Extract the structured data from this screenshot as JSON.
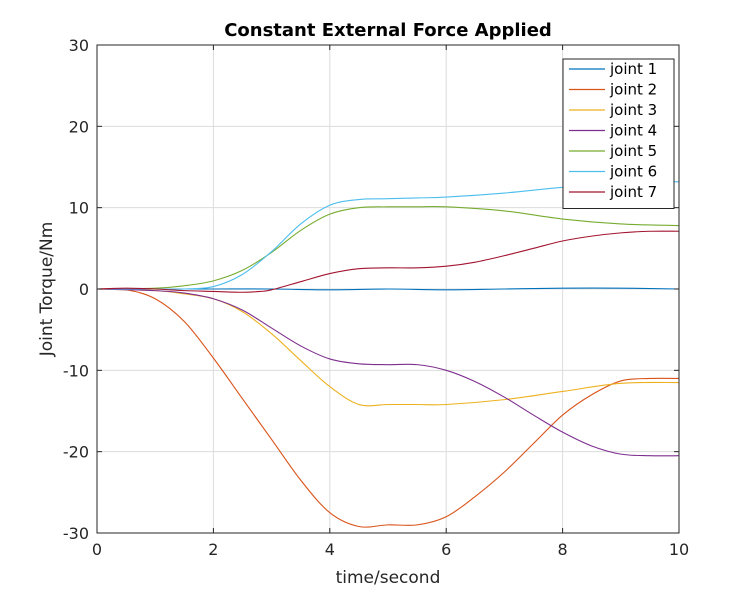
{
  "chart_data": {
    "type": "line",
    "title": "Constant External Force Applied",
    "xlabel": "time/second",
    "ylabel": "Joint Torque/Nm",
    "xlim": [
      0,
      10
    ],
    "ylim": [
      -30,
      30
    ],
    "xticks": [
      0,
      2,
      4,
      6,
      8,
      10
    ],
    "yticks": [
      -30,
      -20,
      -10,
      0,
      10,
      20,
      30
    ],
    "xtick_labels": [
      "0",
      "2",
      "4",
      "6",
      "8",
      "10"
    ],
    "ytick_labels": [
      "-30",
      "-20",
      "-10",
      "0",
      "10",
      "20",
      "30"
    ],
    "grid": true,
    "legend_position": "top-right",
    "series": [
      {
        "name": "joint 1",
        "color": "#0072bd",
        "x": [
          0,
          1,
          2,
          3,
          4,
          5,
          6,
          7,
          8,
          9,
          10
        ],
        "y": [
          0,
          0,
          0,
          0,
          -0.1,
          0,
          -0.1,
          0,
          0.1,
          0.1,
          0
        ]
      },
      {
        "name": "joint 2",
        "color": "#d95319",
        "x": [
          0,
          0.5,
          1,
          1.5,
          2,
          2.5,
          3,
          3.5,
          4,
          4.5,
          5,
          5.5,
          6,
          6.5,
          7,
          7.5,
          8,
          8.5,
          9,
          9.5,
          10
        ],
        "y": [
          0,
          -0.1,
          -1.2,
          -4.0,
          -8.5,
          -13.5,
          -18.5,
          -23.5,
          -27.5,
          -29.2,
          -29.0,
          -29.0,
          -28.0,
          -25.5,
          -22.5,
          -19.0,
          -15.5,
          -13.0,
          -11.3,
          -11.0,
          -11.0
        ]
      },
      {
        "name": "joint 3",
        "color": "#edb120",
        "x": [
          0,
          1,
          1.5,
          2,
          2.5,
          3,
          3.5,
          4,
          4.5,
          5,
          5.5,
          6,
          7,
          8,
          9,
          10
        ],
        "y": [
          0,
          -0.2,
          -0.6,
          -1.2,
          -2.8,
          -5.5,
          -8.8,
          -12.0,
          -14.2,
          -14.2,
          -14.2,
          -14.2,
          -13.6,
          -12.6,
          -11.6,
          -11.5
        ]
      },
      {
        "name": "joint 4",
        "color": "#7e2f8e",
        "x": [
          0,
          1,
          1.5,
          2,
          2.5,
          3,
          3.5,
          4,
          4.5,
          5,
          5.5,
          6,
          6.5,
          7,
          7.5,
          8,
          8.5,
          9,
          9.5,
          10
        ],
        "y": [
          0,
          -0.2,
          -0.5,
          -1.2,
          -2.6,
          -4.8,
          -7.0,
          -8.6,
          -9.2,
          -9.3,
          -9.3,
          -10.0,
          -11.4,
          -13.3,
          -15.5,
          -17.6,
          -19.3,
          -20.3,
          -20.5,
          -20.5
        ]
      },
      {
        "name": "joint 5",
        "color": "#77ac30",
        "x": [
          0,
          1,
          1.5,
          2,
          2.5,
          3,
          3.5,
          4,
          4.5,
          5,
          5.5,
          6,
          7,
          8,
          9,
          10
        ],
        "y": [
          0,
          0.1,
          0.4,
          1.0,
          2.3,
          4.5,
          7.2,
          9.2,
          10.0,
          10.1,
          10.1,
          10.1,
          9.6,
          8.6,
          8.0,
          7.8
        ]
      },
      {
        "name": "joint 6",
        "color": "#4dbeee",
        "x": [
          0,
          1,
          1.5,
          2,
          2.5,
          3,
          3.5,
          4,
          4.5,
          5,
          5.5,
          6,
          7,
          8,
          9,
          10
        ],
        "y": [
          0,
          0,
          0,
          0.3,
          1.8,
          4.6,
          8.0,
          10.3,
          11.0,
          11.1,
          11.2,
          11.3,
          11.8,
          12.5,
          13.0,
          13.2
        ]
      },
      {
        "name": "joint 7",
        "color": "#a2142f",
        "x": [
          0,
          0.5,
          1,
          1.5,
          2,
          2.5,
          2.8,
          3,
          3.5,
          4,
          4.5,
          5,
          5.5,
          6,
          6.5,
          7,
          7.5,
          8,
          8.5,
          9,
          9.5,
          10
        ],
        "y": [
          0,
          0.1,
          0,
          -0.2,
          -0.3,
          -0.4,
          -0.3,
          -0.1,
          0.9,
          1.9,
          2.5,
          2.6,
          2.6,
          2.8,
          3.3,
          4.1,
          5.0,
          5.9,
          6.5,
          6.9,
          7.1,
          7.1
        ]
      }
    ]
  }
}
